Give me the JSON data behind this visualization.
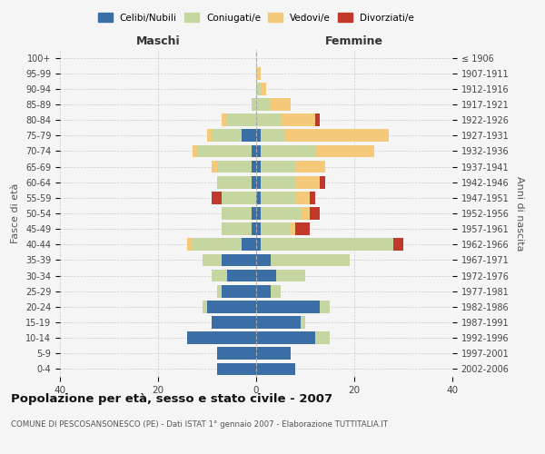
{
  "age_groups": [
    "0-4",
    "5-9",
    "10-14",
    "15-19",
    "20-24",
    "25-29",
    "30-34",
    "35-39",
    "40-44",
    "45-49",
    "50-54",
    "55-59",
    "60-64",
    "65-69",
    "70-74",
    "75-79",
    "80-84",
    "85-89",
    "90-94",
    "95-99",
    "100+"
  ],
  "year_labels": [
    "2002-2006",
    "1997-2001",
    "1992-1996",
    "1987-1991",
    "1982-1986",
    "1977-1981",
    "1972-1976",
    "1967-1971",
    "1962-1966",
    "1957-1961",
    "1952-1956",
    "1947-1951",
    "1942-1946",
    "1937-1941",
    "1932-1936",
    "1927-1931",
    "1922-1926",
    "1917-1921",
    "1912-1916",
    "1907-1911",
    "≤ 1906"
  ],
  "males": {
    "celibi": [
      8,
      8,
      14,
      9,
      10,
      7,
      6,
      7,
      3,
      1,
      1,
      0,
      1,
      1,
      1,
      3,
      0,
      0,
      0,
      0,
      0
    ],
    "coniugati": [
      0,
      0,
      0,
      0,
      1,
      1,
      3,
      4,
      10,
      6,
      6,
      7,
      7,
      7,
      11,
      6,
      6,
      1,
      0,
      0,
      0
    ],
    "vedovi": [
      0,
      0,
      0,
      0,
      0,
      0,
      0,
      0,
      1,
      0,
      0,
      0,
      0,
      1,
      1,
      1,
      1,
      0,
      0,
      0,
      0
    ],
    "divorziati": [
      0,
      0,
      0,
      0,
      0,
      0,
      0,
      0,
      0,
      0,
      0,
      2,
      0,
      0,
      0,
      0,
      0,
      0,
      0,
      0,
      0
    ]
  },
  "females": {
    "nubili": [
      8,
      7,
      12,
      9,
      13,
      3,
      4,
      3,
      1,
      1,
      1,
      1,
      1,
      1,
      1,
      1,
      0,
      0,
      0,
      0,
      0
    ],
    "coniugate": [
      0,
      0,
      3,
      1,
      2,
      2,
      6,
      16,
      27,
      6,
      8,
      7,
      7,
      7,
      11,
      5,
      5,
      3,
      1,
      0,
      0
    ],
    "vedove": [
      0,
      0,
      0,
      0,
      0,
      0,
      0,
      0,
      0,
      1,
      2,
      3,
      5,
      6,
      12,
      21,
      7,
      4,
      1,
      1,
      0
    ],
    "divorziate": [
      0,
      0,
      0,
      0,
      0,
      0,
      0,
      0,
      2,
      3,
      2,
      1,
      1,
      0,
      0,
      0,
      1,
      0,
      0,
      0,
      0
    ]
  },
  "color_celibi": "#3a6ea5",
  "color_coniugati": "#c5d6a0",
  "color_vedovi": "#f5c97a",
  "color_divorziati": "#c0392b",
  "title": "Popolazione per età, sesso e stato civile - 2007",
  "subtitle": "COMUNE DI PESCOSANSONESCO (PE) - Dati ISTAT 1° gennaio 2007 - Elaborazione TUTTITALIA.IT",
  "xlabel_left": "Maschi",
  "xlabel_right": "Femmine",
  "ylabel_left": "Fasce di età",
  "ylabel_right": "Anni di nascita",
  "xlim": 40,
  "bg_color": "#f5f5f5",
  "grid_color": "#cccccc"
}
